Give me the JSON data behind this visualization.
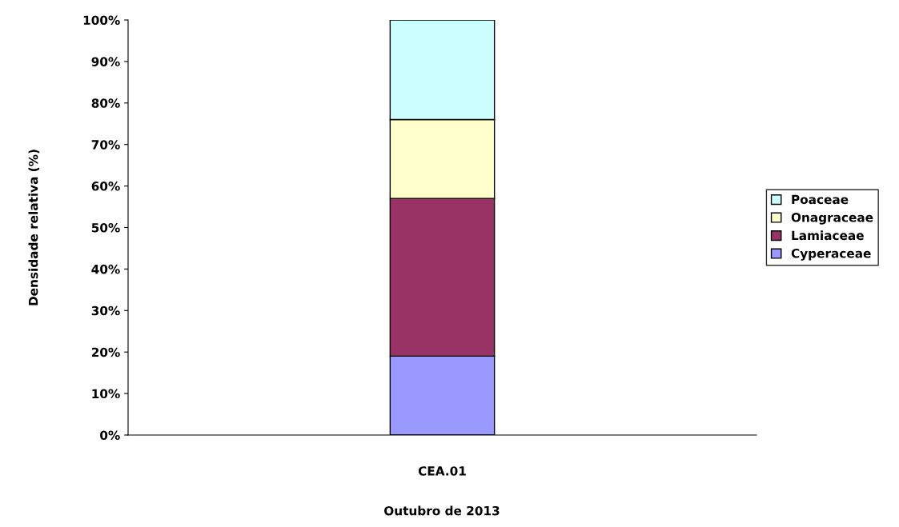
{
  "chart_data": {
    "type": "bar",
    "stacked": true,
    "ylabel": "Densidade relativa (%)",
    "annotations": [
      "Outubro de 2013"
    ],
    "categories": [
      "CEA.01"
    ],
    "series": [
      {
        "name": "Cyperaceae",
        "color": "#9999ff",
        "values": [
          19
        ]
      },
      {
        "name": "Lamiaceae",
        "color": "#993366",
        "values": [
          38
        ]
      },
      {
        "name": "Onagraceae",
        "color": "#ffffcc",
        "values": [
          19
        ]
      },
      {
        "name": "Poaceae",
        "color": "#ccffff",
        "values": [
          24
        ]
      }
    ],
    "ylim": [
      0,
      100
    ],
    "yticks": [
      {
        "value": 0,
        "label": "0%"
      },
      {
        "value": 10,
        "label": "10%"
      },
      {
        "value": 20,
        "label": "20%"
      },
      {
        "value": 30,
        "label": "30%"
      },
      {
        "value": 40,
        "label": "40%"
      },
      {
        "value": 50,
        "label": "50%"
      },
      {
        "value": 60,
        "label": "60%"
      },
      {
        "value": 70,
        "label": "70%"
      },
      {
        "value": 80,
        "label": "80%"
      },
      {
        "value": 90,
        "label": "90%"
      },
      {
        "value": 100,
        "label": "100%"
      }
    ],
    "grid": false,
    "legend": "right"
  }
}
